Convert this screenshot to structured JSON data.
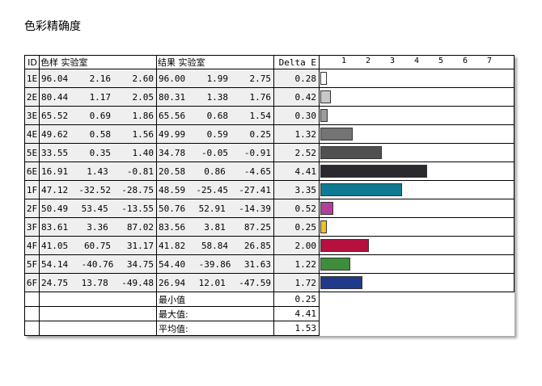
{
  "page": {
    "title": "色彩精确度"
  },
  "chart_data": {
    "type": "table",
    "headers": {
      "id": "ID",
      "sample": "色样 实验室",
      "result": "结果 实验室",
      "delta": "Delta E"
    },
    "axis": {
      "ticks": [
        "1",
        "2",
        "3",
        "4",
        "5",
        "6",
        "7"
      ],
      "min": 0,
      "max": 8
    },
    "rows": [
      {
        "id": "1E",
        "sample": [
          "96.04",
          "2.16",
          "2.60"
        ],
        "result": [
          "96.00",
          "1.99",
          "2.75"
        ],
        "delta_label": "0.28",
        "delta": 0.28,
        "color": "#ffffff"
      },
      {
        "id": "2E",
        "sample": [
          "80.44",
          "1.17",
          "2.05"
        ],
        "result": [
          "80.31",
          "1.38",
          "1.76"
        ],
        "delta_label": "0.42",
        "delta": 0.42,
        "color": "#c8c8c8"
      },
      {
        "id": "3E",
        "sample": [
          "65.52",
          "0.69",
          "1.86"
        ],
        "result": [
          "65.56",
          "0.68",
          "1.54"
        ],
        "delta_label": "0.30",
        "delta": 0.3,
        "color": "#9c9c9c"
      },
      {
        "id": "4E",
        "sample": [
          "49.62",
          "0.58",
          "1.56"
        ],
        "result": [
          "49.99",
          "0.59",
          "0.25"
        ],
        "delta_label": "1.32",
        "delta": 1.32,
        "color": "#747474"
      },
      {
        "id": "5E",
        "sample": [
          "33.55",
          "0.35",
          "1.40"
        ],
        "result": [
          "34.78",
          "-0.05",
          "-0.91"
        ],
        "delta_label": "2.52",
        "delta": 2.52,
        "color": "#505050"
      },
      {
        "id": "6E",
        "sample": [
          "16.91",
          "1.43",
          "-0.81"
        ],
        "result": [
          "20.58",
          "0.86",
          "-4.65"
        ],
        "delta_label": "4.41",
        "delta": 4.41,
        "color": "#2a2a2e"
      },
      {
        "id": "1F",
        "sample": [
          "47.12",
          "-32.52",
          "-28.75"
        ],
        "result": [
          "48.59",
          "-25.45",
          "-27.41"
        ],
        "delta_label": "3.35",
        "delta": 3.35,
        "color": "#0f7a94"
      },
      {
        "id": "2F",
        "sample": [
          "50.49",
          "53.45",
          "-13.55"
        ],
        "result": [
          "50.76",
          "52.91",
          "-14.39"
        ],
        "delta_label": "0.52",
        "delta": 0.52,
        "color": "#b1409a"
      },
      {
        "id": "3F",
        "sample": [
          "83.61",
          "3.36",
          "87.02"
        ],
        "result": [
          "83.56",
          "3.81",
          "87.25"
        ],
        "delta_label": "0.25",
        "delta": 0.25,
        "color": "#f0c020"
      },
      {
        "id": "4F",
        "sample": [
          "41.05",
          "60.75",
          "31.17"
        ],
        "result": [
          "41.82",
          "58.84",
          "26.85"
        ],
        "delta_label": "2.00",
        "delta": 2.0,
        "color": "#b5103e"
      },
      {
        "id": "5F",
        "sample": [
          "54.14",
          "-40.76",
          "34.75"
        ],
        "result": [
          "54.40",
          "-39.86",
          "31.63"
        ],
        "delta_label": "1.22",
        "delta": 1.22,
        "color": "#3f8d3c"
      },
      {
        "id": "6F",
        "sample": [
          "24.75",
          "13.78",
          "-49.48"
        ],
        "result": [
          "26.94",
          "12.01",
          "-47.59"
        ],
        "delta_label": "1.72",
        "delta": 1.72,
        "color": "#1f3a8a"
      }
    ],
    "stats": [
      {
        "label": "最小值",
        "value": "0.25"
      },
      {
        "label": "最大值:",
        "value": "4.41"
      },
      {
        "label": "平均值:",
        "value": "1.53"
      }
    ]
  }
}
